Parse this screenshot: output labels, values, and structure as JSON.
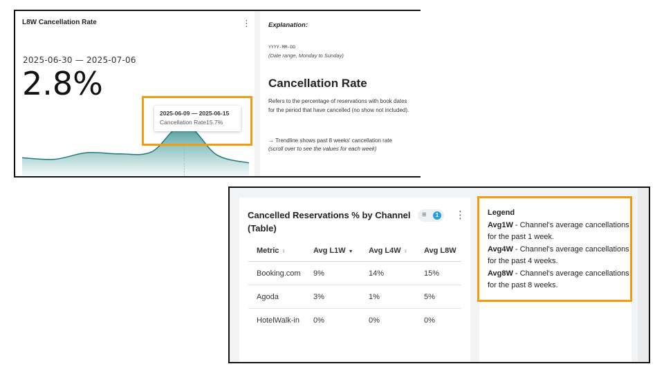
{
  "chart_card": {
    "title": "L8W Cancellation Rate",
    "date_range": "2025-06-30 — 2025-07-06",
    "value": "2.8%",
    "tooltip": {
      "range": "2025-06-09 — 2025-06-15",
      "metric": "Cancellation Rate15.7%"
    }
  },
  "explanation": {
    "heading": "Explanation:",
    "date_format": "YYYY-MM-DD",
    "date_note": "(Date range, Monday to Sunday)",
    "title": "Cancellation Rate",
    "description": "Refers to the percentage of reservations with book dates for the period that have cancelled (no show not included).",
    "trend_line": "→ Trendline shows past 8 weeks' cancellation rate",
    "trend_note": "(scroll over to see the values for each week)"
  },
  "table_card": {
    "title": "Cancelled Reservations % by Channel (Table)",
    "filter_count": "1",
    "columns": [
      "Metric",
      "Avg L1W",
      "Avg L4W",
      "Avg L8W"
    ],
    "rows": [
      [
        "Booking.com",
        "9%",
        "14%",
        "15%"
      ],
      [
        "Agoda",
        "3%",
        "1%",
        "5%"
      ],
      [
        "HotelWalk-in",
        "0%",
        "0%",
        "0%"
      ]
    ]
  },
  "legend": {
    "heading": "Legend",
    "items": [
      {
        "term": "Avg1W",
        "text": " - Channel's average cancellations for the past 1 week."
      },
      {
        "term": "Avg4W",
        "text": " - Channel's average cancellations for the past 4 weeks."
      },
      {
        "term": "Avg8W",
        "text": " - Channel's average cancellations for the past 8 weeks."
      }
    ]
  },
  "chart_data": {
    "type": "area",
    "title": "L8W Cancellation Rate",
    "xlabel": "",
    "ylabel": "",
    "highlighted_week": "2025-06-09 — 2025-06-15",
    "highlighted_value": 15.7,
    "current_value": 2.8,
    "grid": false,
    "series": [
      {
        "name": "Cancellation Rate",
        "values": [
          4.5,
          4.0,
          6.2,
          5.8,
          6.5,
          15.7,
          5.5,
          2.8
        ]
      }
    ]
  },
  "colors": {
    "accent_teal": "#2b8c8c",
    "highlight_orange": "#f39c12",
    "badge_blue": "#2a9fd6"
  }
}
